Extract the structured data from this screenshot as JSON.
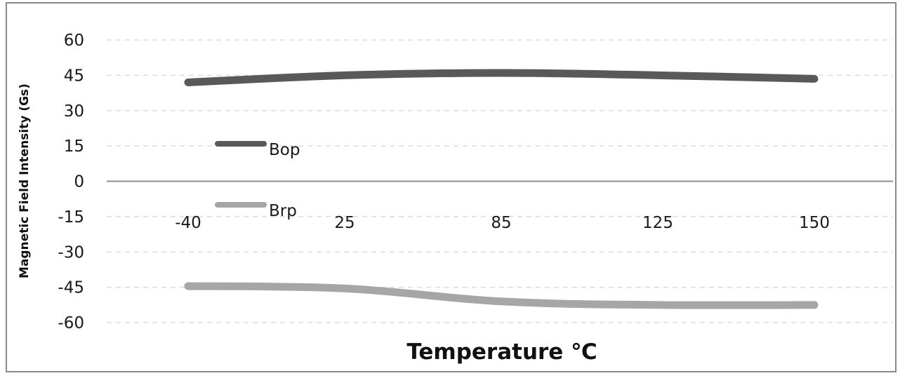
{
  "chart_data": {
    "type": "line",
    "xlabel": "Temperature ℃",
    "ylabel": "Magnetic Field Intensity (Gs)",
    "categories": [
      "-40",
      "25",
      "85",
      "125",
      "150"
    ],
    "ylim": [
      -60,
      60
    ],
    "yticks": [
      60,
      45,
      30,
      15,
      0,
      -15,
      -30,
      -45,
      -60
    ],
    "grid": true,
    "legend_position": "left-center",
    "series": [
      {
        "name": "Bop",
        "values": [
          42,
          45,
          46,
          45,
          43.5
        ],
        "color": "#595959"
      },
      {
        "name": "Brp",
        "values": [
          -44.5,
          -45.5,
          -51,
          -52.5,
          -52.5
        ],
        "color": "#a6a6a6"
      }
    ]
  }
}
